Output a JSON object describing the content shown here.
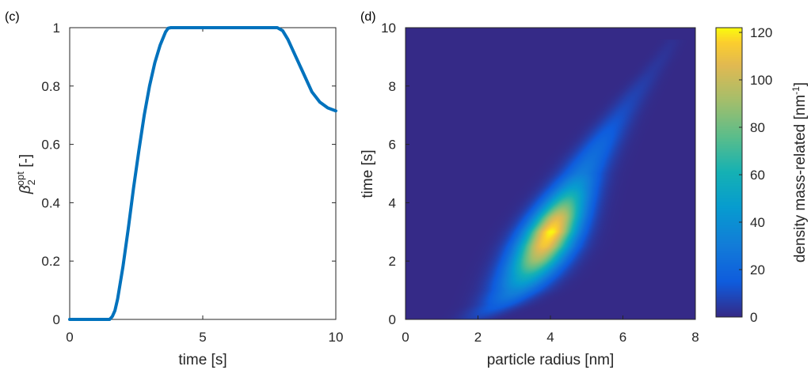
{
  "chart_data": [
    {
      "type": "line",
      "panel_label": "(c)",
      "xlabel": "time [s]",
      "ylabel_main": "β",
      "ylabel_sub": "2",
      "ylabel_sup": "opt",
      "ylabel_unit": " [-]",
      "xlim": [
        0,
        10
      ],
      "ylim": [
        0,
        1
      ],
      "xticks": [
        0,
        5,
        10
      ],
      "xtick_labels": [
        "0",
        "5",
        "10"
      ],
      "yticks": [
        0,
        0.2,
        0.4,
        0.6,
        0.8,
        1
      ],
      "ytick_labels": [
        "0",
        "0.2",
        "0.4",
        "0.6",
        "0.8",
        "1"
      ],
      "grid": false,
      "series": [
        {
          "color": "#0072BD",
          "x": [
            0,
            1.5,
            1.6,
            1.7,
            1.8,
            2.0,
            2.2,
            2.4,
            2.6,
            2.8,
            3.0,
            3.2,
            3.4,
            3.6,
            3.7,
            3.8,
            4.0,
            5.0,
            6.0,
            7.0,
            7.8,
            8.0,
            8.2,
            8.5,
            8.8,
            9.1,
            9.4,
            9.7,
            10.0
          ],
          "y": [
            0,
            0,
            0.01,
            0.03,
            0.07,
            0.18,
            0.31,
            0.45,
            0.58,
            0.7,
            0.8,
            0.88,
            0.94,
            0.985,
            0.998,
            1.0,
            1.0,
            1.0,
            1.0,
            1.0,
            1.0,
            0.99,
            0.96,
            0.9,
            0.84,
            0.78,
            0.745,
            0.725,
            0.715
          ]
        }
      ]
    },
    {
      "type": "heatmap",
      "panel_label": "(d)",
      "xlabel": "particle radius [nm]",
      "ylabel": "time [s]",
      "xlim": [
        0,
        8
      ],
      "ylim": [
        0,
        10
      ],
      "xticks": [
        0,
        2,
        4,
        6,
        8
      ],
      "xtick_labels": [
        "0",
        "2",
        "4",
        "6",
        "8"
      ],
      "yticks": [
        0,
        2,
        4,
        6,
        8,
        10
      ],
      "ytick_labels": [
        "0",
        "2",
        "4",
        "6",
        "8",
        "10"
      ],
      "colorbar": {
        "label_main": "density mass-related [nm",
        "label_sup": "-1",
        "label_end": "]",
        "range": [
          0,
          122
        ],
        "ticks": [
          0,
          20,
          40,
          60,
          80,
          100,
          120
        ],
        "tick_labels": [
          "0",
          "20",
          "40",
          "60",
          "80",
          "100",
          "120"
        ],
        "colormap": "parula"
      },
      "ridge": {
        "t": [
          0.0,
          0.5,
          1.0,
          1.5,
          2.0,
          2.5,
          3.0,
          3.5,
          4.0,
          4.5,
          5.0,
          5.5,
          6.0,
          6.5,
          7.0,
          7.5,
          8.0,
          8.5,
          9.0,
          9.5
        ],
        "r": [
          1.9,
          2.6,
          3.05,
          3.35,
          3.6,
          3.82,
          4.02,
          4.22,
          4.43,
          4.65,
          4.88,
          5.12,
          5.38,
          5.64,
          5.92,
          6.2,
          6.5,
          6.8,
          7.1,
          7.35
        ],
        "peak": [
          6,
          18,
          35,
          60,
          90,
          112,
          122,
          105,
          75,
          48,
          30,
          24,
          20,
          15,
          11,
          8,
          6,
          4,
          3,
          2
        ],
        "width": [
          0.35,
          0.42,
          0.48,
          0.5,
          0.5,
          0.5,
          0.48,
          0.46,
          0.44,
          0.42,
          0.4,
          0.38,
          0.35,
          0.33,
          0.3,
          0.28,
          0.25,
          0.22,
          0.2,
          0.18
        ]
      }
    }
  ]
}
